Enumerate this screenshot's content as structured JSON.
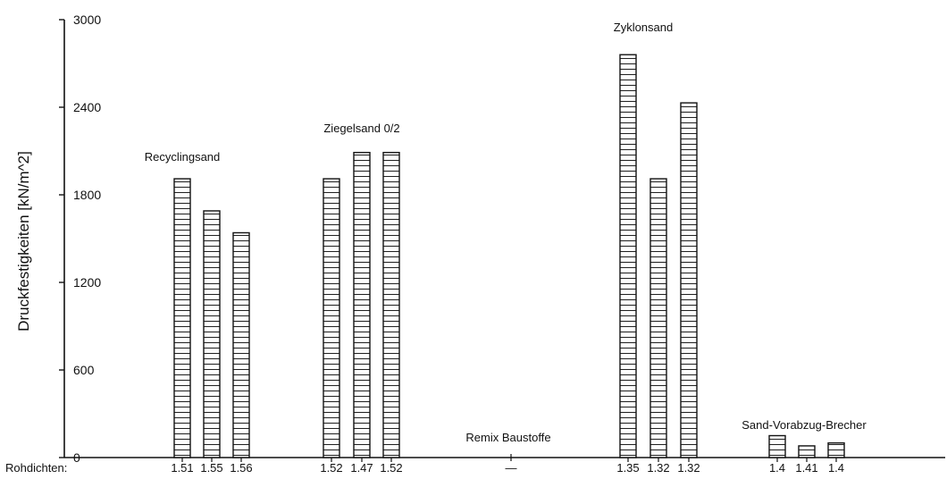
{
  "chart_data": {
    "type": "bar",
    "title": "",
    "ylabel": "Druckfestigkeiten [kN/m^2]",
    "xlabel": "",
    "ylim": [
      0,
      3000
    ],
    "yticks": [
      "0",
      "600",
      "1200",
      "1800",
      "2400",
      "3000"
    ],
    "density_label": "Rohdichten:",
    "groups": [
      {
        "name": "Recyclingsand",
        "bars": [
          {
            "density": "1.51",
            "value": 1910
          },
          {
            "density": "1.55",
            "value": 1690
          },
          {
            "density": "1.56",
            "value": 1540
          }
        ]
      },
      {
        "name": "Ziegelsand 0/2",
        "bars": [
          {
            "density": "1.52",
            "value": 1910
          },
          {
            "density": "1.47",
            "value": 2090
          },
          {
            "density": "1.52",
            "value": 2090
          }
        ]
      },
      {
        "name": "Remix Baustoffe",
        "bars": [],
        "density_text": "—"
      },
      {
        "name": "Zyklonsand",
        "bars": [
          {
            "density": "1.35",
            "value": 2760
          },
          {
            "density": "1.32",
            "value": 1910
          },
          {
            "density": "1.32",
            "value": 2430
          }
        ]
      },
      {
        "name": "Sand-Vorabzug-Brecher",
        "bars": [
          {
            "density": "1.4",
            "value": 150
          },
          {
            "density": "1.41",
            "value": 80
          },
          {
            "density": "1.4",
            "value": 100
          }
        ]
      }
    ]
  }
}
